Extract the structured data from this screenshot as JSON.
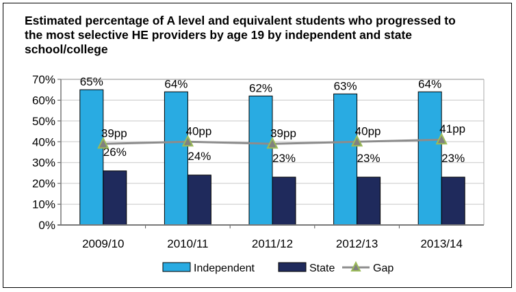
{
  "chart_data": {
    "type": "bar",
    "title": "Estimated percentage of A level and equivalent students who progressed to the most selective HE providers by age 19 by independent and state school/college",
    "categories": [
      "2009/10",
      "2010/11",
      "2011/12",
      "2012/13",
      "2013/14"
    ],
    "series": [
      {
        "name": "Independent",
        "type": "bar",
        "color": "#29abe2",
        "values": [
          65,
          64,
          62,
          63,
          64
        ],
        "labels": [
          "65%",
          "64%",
          "62%",
          "63%",
          "64%"
        ]
      },
      {
        "name": "State",
        "type": "bar",
        "color": "#1f2a5c",
        "values": [
          26,
          24,
          23,
          23,
          23
        ],
        "labels": [
          "26%",
          "24%",
          "23%",
          "23%",
          "23%"
        ]
      },
      {
        "name": "Gap",
        "type": "line",
        "color": "#8c8c8c",
        "marker_color": "#9bbb59",
        "values": [
          39,
          40,
          39,
          40,
          41
        ],
        "labels": [
          "39pp",
          "40pp",
          "39pp",
          "40pp",
          "41pp"
        ]
      }
    ],
    "ylim": [
      0,
      70
    ],
    "yticks": [
      "0%",
      "10%",
      "20%",
      "30%",
      "40%",
      "50%",
      "60%",
      "70%"
    ],
    "xlabel": "",
    "ylabel": "",
    "grid": true,
    "legend": "bottom"
  }
}
